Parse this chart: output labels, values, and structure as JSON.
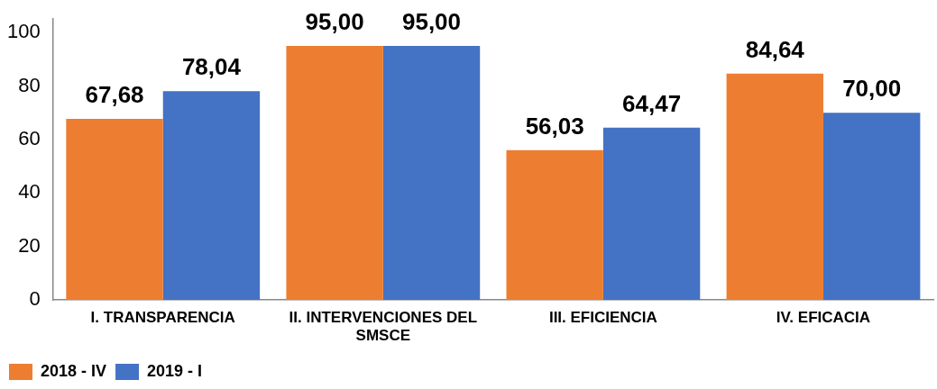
{
  "chart_data": {
    "type": "bar",
    "categories": [
      "I. TRANSPARENCIA",
      "II. INTERVENCIONES DEL SMSCE",
      "III. EFICIENCIA",
      "IV. EFICACIA"
    ],
    "series": [
      {
        "name": "2018 - IV",
        "color": "#ed7d31",
        "values": [
          67.68,
          95.0,
          56.03,
          84.64
        ],
        "value_labels": [
          "67,68",
          "95,00",
          "56,03",
          "84,64"
        ]
      },
      {
        "name": "2019 - I",
        "color": "#4472c4",
        "values": [
          78.04,
          95.0,
          64.47,
          70.0
        ],
        "value_labels": [
          "78,04",
          "95,00",
          "64,47",
          "70,00"
        ]
      }
    ],
    "ylim": [
      0,
      105
    ],
    "yticks": [
      0,
      20,
      40,
      60,
      80,
      100
    ],
    "grid": false,
    "legend": "bottom left"
  }
}
